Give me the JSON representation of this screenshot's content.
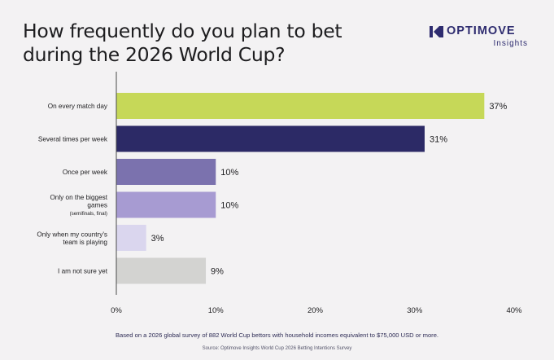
{
  "title": "How frequently do you plan to bet during the 2026 World Cup?",
  "logo": {
    "name": "OPTIMOVE",
    "sub": "Insights",
    "color": "#2e2c6f"
  },
  "chart_data": {
    "type": "bar",
    "orientation": "horizontal",
    "title": "How frequently do you plan to bet during the 2026 World Cup?",
    "categories": [
      [
        "On every match day"
      ],
      [
        "Several times per week"
      ],
      [
        "Once per week"
      ],
      [
        "Only on the biggest",
        "games",
        "(semifinals, final)"
      ],
      [
        "Only when my country's",
        "team is playing"
      ],
      [
        "I am not sure yet"
      ]
    ],
    "values": [
      37,
      31,
      10,
      10,
      3,
      9
    ],
    "value_labels": [
      "37%",
      "31%",
      "10%",
      "10%",
      "3%",
      "9%"
    ],
    "colors": [
      "#c6d858",
      "#2c2a66",
      "#7b72ae",
      "#a79bd2",
      "#dad6ee",
      "#d3d3d1"
    ],
    "xlim": [
      0,
      40
    ],
    "x_ticks": [
      0,
      10,
      20,
      30,
      40
    ],
    "x_tick_labels": [
      "0%",
      "10%",
      "20%",
      "30%",
      "40%"
    ],
    "grid": false,
    "legend": "none"
  },
  "footnote": "Based on a 2026 global survey of 882 World Cup bettors with household incomes equivalent to $75,000 USD or more.",
  "source": "Source: Optimove Insights World Cup 2026 Betting Intentions Survey"
}
